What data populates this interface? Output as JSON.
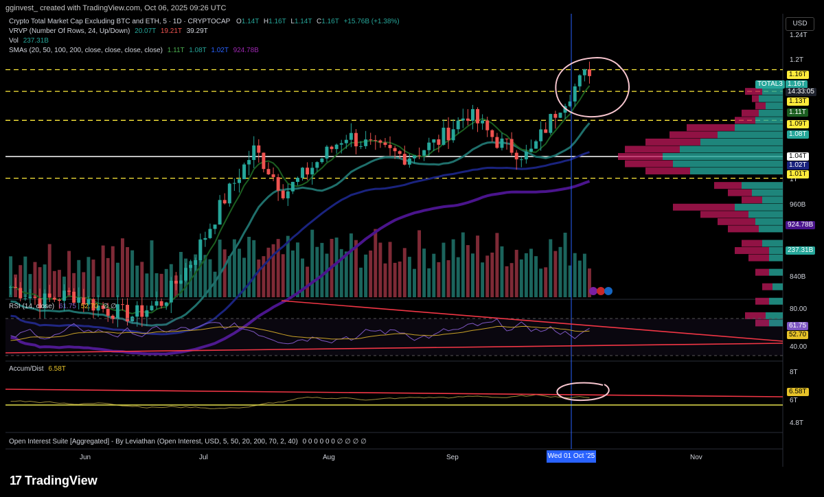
{
  "header": {
    "author_line": "gginvest_ created with TradingView.com, Oct 06, 2025 09:26 UTC",
    "symbol_title": "Crypto Total Market Cap Excluding BTC and ETH, 5 · 1D · CRYPTOCAP",
    "ohlc": {
      "o_label": "O",
      "o": "1.14T",
      "h_label": "H",
      "h": "1.16T",
      "l_label": "L",
      "l": "1.14T",
      "c_label": "C",
      "c": "1.16T",
      "change": "+15.76B (+1.38%)"
    },
    "vrvp": {
      "label": "VRVP (Number Of Rows, 24, Up/Down)",
      "up": "20.07T",
      "down": "19.21T",
      "total": "39.29T"
    },
    "vol": {
      "label": "Vol",
      "value": "237.31B"
    },
    "smas": {
      "label": "SMAs (20, 50, 100, 200, close, close, close, close)",
      "v20": "1.11T",
      "v50": "1.08T",
      "v100": "1.02T",
      "v200": "924.78B"
    }
  },
  "currency": "USD",
  "price_axis": {
    "ticks": [
      "1.24T",
      "1.2T",
      "1T",
      "960B",
      "840B"
    ],
    "badges": [
      {
        "text": "1.16T",
        "kind": "yellow"
      },
      {
        "text": "TOTAL3",
        "kind": "teal"
      },
      {
        "text": "1.16T",
        "kind": "teal"
      },
      {
        "text": "14:33:05",
        "kind": "dark"
      },
      {
        "text": "1.13T",
        "kind": "yellow"
      },
      {
        "text": "1.11T",
        "kind": "green"
      },
      {
        "text": "1.09T",
        "kind": "yellow"
      },
      {
        "text": "1.08T",
        "kind": "teal"
      },
      {
        "text": "1.04T",
        "kind": "white"
      },
      {
        "text": "1.02T",
        "kind": "blue"
      },
      {
        "text": "1.01T",
        "kind": "yellow"
      },
      {
        "text": "924.78B",
        "kind": "purple"
      },
      {
        "text": "237.31B",
        "kind": "teal"
      }
    ]
  },
  "rsi": {
    "label": "RSI (14, close)",
    "value": "61.75",
    "ma": "52.70",
    "extra": "∅ ∅",
    "ticks": [
      "80.00",
      "40.00"
    ],
    "badges": [
      "61.75",
      "52.70"
    ]
  },
  "accum": {
    "label": "Accum/Dist",
    "value": "6.58T",
    "ticks": [
      "8T",
      "6T",
      "4.8T"
    ],
    "badge": "6.58T"
  },
  "oi": {
    "label": "Open Interest Suite [Aggregated] - By Leviathan (Open Interest, USD, 5, 50, 20, 200, 70, 2, 40)",
    "values": "0 0 0 0 0 0 ∅ ∅ ∅ ∅"
  },
  "time_axis": {
    "months": [
      "Jun",
      "Jul",
      "Aug",
      "Sep",
      "Nov"
    ],
    "cursor_date": "Wed 01 Oct '25"
  },
  "brand": "TradingView",
  "colors": {
    "up": "#26a69a",
    "down": "#ef5350",
    "sma20": "#1b5e20",
    "sma50": "#1f6f6b",
    "sma100": "#1a237e",
    "sma200": "#4a148c",
    "level": "#ffeb3b",
    "rsi": "#7e57c2",
    "rsi_ma": "#c9a227",
    "trend": "#f23645",
    "cursor": "#2962ff"
  },
  "chart_data": {
    "type": "candlestick",
    "title": "Crypto Total Market Cap Excluding BTC and ETH",
    "x": [
      "2025-05-15",
      "2025-05-22",
      "2025-06-01",
      "2025-06-15",
      "2025-06-22",
      "2025-07-01",
      "2025-07-08",
      "2025-07-15",
      "2025-07-22",
      "2025-08-01",
      "2025-08-08",
      "2025-08-15",
      "2025-08-22",
      "2025-09-01",
      "2025-09-08",
      "2025-09-15",
      "2025-09-22",
      "2025-09-26",
      "2025-10-01",
      "2025-10-06"
    ],
    "close": [
      0.86,
      0.84,
      0.85,
      0.83,
      0.82,
      0.84,
      0.9,
      0.98,
      1.05,
      0.99,
      1.03,
      1.07,
      1.05,
      1.04,
      1.06,
      1.1,
      1.06,
      1.04,
      1.11,
      1.16
    ],
    "ylabel": "",
    "ylim": [
      0.8,
      1.26
    ],
    "levels": [
      1.16,
      1.13,
      1.09,
      1.04,
      1.01
    ],
    "sma": {
      "20": 1.11,
      "50": 1.08,
      "100": 1.02,
      "200": 0.92478
    },
    "volume_latest": "237.31B",
    "rsi": {
      "value": 61.75,
      "ma": 52.7
    },
    "accum_dist": 6.58
  }
}
